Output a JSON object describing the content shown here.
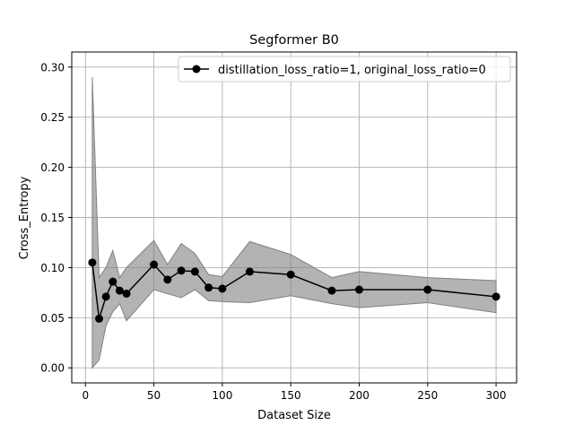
{
  "chart_data": {
    "type": "line",
    "title": "Segformer B0",
    "xlabel": "Dataset Size",
    "ylabel": "Cross_Entropy",
    "xlim": [
      -10,
      315
    ],
    "ylim": [
      -0.015,
      0.315
    ],
    "xticks": [
      0,
      50,
      100,
      150,
      200,
      250,
      300
    ],
    "yticks": [
      0.0,
      0.05,
      0.1,
      0.15,
      0.2,
      0.25,
      0.3
    ],
    "ytick_labels": [
      "0.00",
      "0.05",
      "0.10",
      "0.15",
      "0.20",
      "0.25",
      "0.30"
    ],
    "grid": true,
    "legend_position": "top-right",
    "series": [
      {
        "name": "distillation_loss_ratio=1, original_loss_ratio=0",
        "color": "#000000",
        "marker": "circle",
        "x": [
          5,
          10,
          15,
          20,
          25,
          30,
          50,
          60,
          70,
          80,
          90,
          100,
          120,
          150,
          180,
          200,
          250,
          300
        ],
        "y": [
          0.105,
          0.049,
          0.071,
          0.086,
          0.077,
          0.074,
          0.103,
          0.088,
          0.097,
          0.096,
          0.08,
          0.079,
          0.096,
          0.093,
          0.077,
          0.078,
          0.078,
          0.071
        ],
        "band": {
          "color": "#808080",
          "upper": [
            0.29,
            0.09,
            0.1,
            0.117,
            0.09,
            0.1,
            0.127,
            0.103,
            0.124,
            0.114,
            0.093,
            0.091,
            0.126,
            0.113,
            0.09,
            0.096,
            0.09,
            0.087
          ],
          "lower": [
            0.0,
            0.008,
            0.042,
            0.056,
            0.064,
            0.047,
            0.078,
            0.074,
            0.07,
            0.078,
            0.067,
            0.066,
            0.065,
            0.072,
            0.064,
            0.06,
            0.065,
            0.055
          ]
        }
      }
    ]
  }
}
